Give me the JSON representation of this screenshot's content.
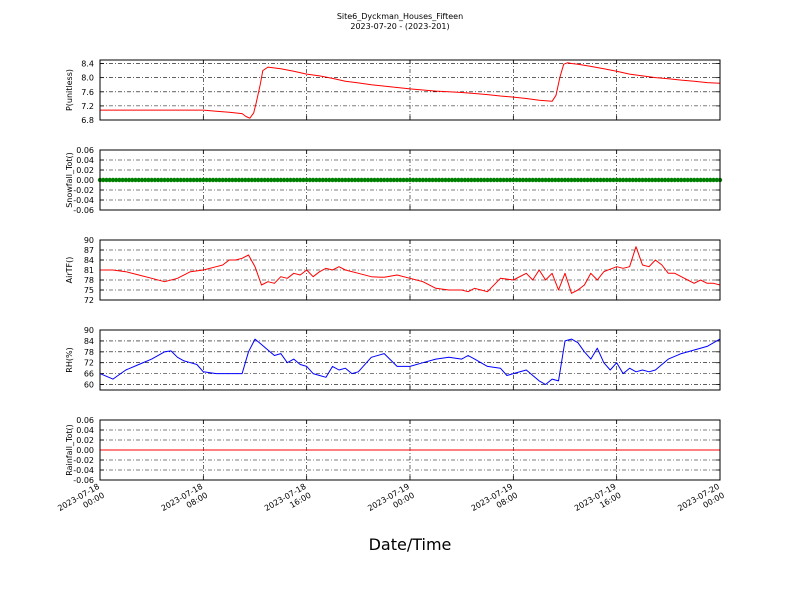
{
  "figure": {
    "title_line1": "Site6_Dyckman_Houses_Fifteen",
    "title_line2": "2023-07-20 - (2023-201)",
    "xlabel": "Date/Time"
  },
  "chart_data": [
    {
      "type": "line",
      "ylabel": "P(unitless)",
      "color": "#ff0000",
      "x_range_hours": [
        0,
        48
      ],
      "ylim": [
        6.8,
        8.5
      ],
      "yticks": [
        "8.4",
        "8.0",
        "7.6",
        "7.2",
        "6.8"
      ],
      "ytick_values": [
        8.4,
        8.0,
        7.6,
        7.2,
        6.8
      ],
      "grid": true,
      "x": [
        0,
        2,
        4,
        6,
        8,
        9,
        10,
        11,
        11.3,
        11.6,
        11.9,
        12.1,
        12.4,
        12.6,
        13,
        14,
        15,
        16,
        17,
        18,
        19,
        20,
        21,
        22,
        23,
        24,
        25,
        26,
        27,
        28,
        29,
        30,
        31,
        32,
        33,
        34,
        35,
        35.3,
        35.6,
        35.9,
        36.2,
        36.5,
        37,
        38,
        39,
        40,
        41,
        42,
        43,
        44,
        45,
        46,
        47,
        48
      ],
      "y": [
        7.08,
        7.08,
        7.08,
        7.08,
        7.08,
        7.05,
        7.02,
        6.98,
        6.9,
        6.85,
        7.0,
        7.3,
        7.8,
        8.2,
        8.3,
        8.25,
        8.18,
        8.1,
        8.05,
        7.98,
        7.9,
        7.85,
        7.8,
        7.76,
        7.72,
        7.68,
        7.65,
        7.62,
        7.6,
        7.58,
        7.55,
        7.52,
        7.48,
        7.45,
        7.41,
        7.36,
        7.33,
        7.5,
        8.0,
        8.38,
        8.42,
        8.4,
        8.38,
        8.32,
        8.25,
        8.18,
        8.1,
        8.05,
        8.0,
        7.97,
        7.93,
        7.9,
        7.86,
        7.84
      ]
    },
    {
      "type": "scatter",
      "ylabel": "Snowfall_Tot()",
      "color": "#008000",
      "x_range_hours": [
        0,
        48
      ],
      "ylim": [
        -0.06,
        0.06
      ],
      "yticks": [
        "0.06",
        "0.04",
        "0.02",
        "0.00",
        "-0.02",
        "-0.04",
        "-0.06"
      ],
      "ytick_values": [
        0.06,
        0.04,
        0.02,
        0.0,
        -0.02,
        -0.04,
        -0.06
      ],
      "grid": true,
      "constant_value": 0.0
    },
    {
      "type": "line",
      "ylabel": "AirTF()",
      "color": "#ff0000",
      "x_range_hours": [
        0,
        48
      ],
      "ylim": [
        72,
        90
      ],
      "yticks": [
        "90",
        "87",
        "84",
        "81",
        "78",
        "75",
        "72"
      ],
      "ytick_values": [
        90,
        87,
        84,
        81,
        78,
        75,
        72
      ],
      "grid": true,
      "x": [
        0,
        1,
        2,
        3,
        4,
        5,
        6,
        7,
        8,
        9,
        9.5,
        10,
        10.5,
        11,
        11.5,
        12,
        12.5,
        13,
        13.5,
        14,
        14.5,
        15,
        15.5,
        16,
        16.5,
        17,
        17.5,
        18,
        18.5,
        19,
        20,
        21,
        22,
        23,
        24,
        24.5,
        25,
        26,
        27,
        28,
        28.5,
        29,
        29.5,
        30,
        31,
        32,
        33,
        33.5,
        34,
        34.5,
        35,
        35.5,
        36,
        36.5,
        37,
        37.5,
        38,
        38.5,
        39,
        40,
        40.5,
        41,
        41.5,
        42,
        42.5,
        43,
        43.5,
        44,
        44.5,
        45,
        45.5,
        46,
        46.5,
        47,
        47.5,
        48
      ],
      "y": [
        81,
        81,
        80.5,
        79.5,
        78.5,
        77.5,
        78.5,
        80.5,
        81,
        82,
        82.5,
        84,
        84,
        84.5,
        85.5,
        82,
        76.5,
        77.5,
        77,
        79,
        78.5,
        80,
        79.5,
        81,
        79,
        80.5,
        81.5,
        81,
        82,
        81,
        80,
        79,
        78.8,
        79.5,
        78.5,
        78,
        77.5,
        75.5,
        75,
        75,
        74.5,
        75.5,
        75,
        74.5,
        78.5,
        78,
        80,
        78,
        81,
        78,
        80,
        75,
        80,
        74,
        75,
        76.5,
        80,
        78,
        80.5,
        82,
        81.5,
        82,
        88,
        82.5,
        82,
        84,
        82.5,
        80,
        80,
        79,
        78,
        77,
        78,
        77,
        77,
        76.5
      ]
    },
    {
      "type": "line",
      "ylabel": "RH(%)",
      "color": "#0000ff",
      "x_range_hours": [
        0,
        48
      ],
      "ylim": [
        57,
        90
      ],
      "yticks": [
        "90",
        "84",
        "78",
        "72",
        "66",
        "60"
      ],
      "ytick_values": [
        90,
        84,
        78,
        72,
        66,
        60
      ],
      "grid": true,
      "x": [
        0,
        1,
        2,
        3,
        4,
        5,
        5.5,
        6,
        6.5,
        7,
        7.5,
        8,
        9,
        10,
        11,
        11.5,
        12,
        12.5,
        13,
        13.5,
        14,
        14.5,
        15,
        15.5,
        16,
        16.5,
        17,
        17.5,
        18,
        18.5,
        19,
        19.5,
        20,
        21,
        22,
        23,
        24,
        25,
        26,
        27,
        28,
        28.5,
        29,
        30,
        31,
        31.5,
        32,
        33,
        34,
        34.5,
        35,
        35.5,
        36,
        36.5,
        37,
        37.5,
        38,
        38.5,
        39,
        39.5,
        40,
        40.5,
        41,
        41.5,
        42,
        42.5,
        43,
        43.5,
        44,
        45,
        46,
        47,
        48
      ],
      "y": [
        66,
        63,
        68,
        71,
        74,
        78,
        78.5,
        75,
        73,
        72,
        71,
        67,
        66,
        66,
        66,
        78,
        85,
        82,
        79,
        76,
        77,
        72,
        74,
        71,
        70,
        66,
        65,
        64,
        70,
        68,
        69,
        66,
        67,
        75,
        77,
        70,
        70,
        72,
        74,
        75,
        74,
        76,
        74,
        70,
        69,
        65,
        66,
        68,
        62,
        60,
        63,
        62,
        84,
        85,
        83,
        78,
        74,
        80,
        72,
        68,
        72,
        66,
        69,
        67,
        68,
        67,
        68,
        71,
        74,
        77,
        79,
        81,
        85
      ]
    },
    {
      "type": "line",
      "ylabel": "Rainfall_Tot()",
      "color": "#ff0000",
      "x_range_hours": [
        0,
        48
      ],
      "ylim": [
        -0.06,
        0.06
      ],
      "yticks": [
        "0.06",
        "0.04",
        "0.02",
        "0.00",
        "-0.02",
        "-0.04",
        "-0.06"
      ],
      "ytick_values": [
        0.06,
        0.04,
        0.02,
        0.0,
        -0.02,
        -0.04,
        -0.06
      ],
      "grid": true,
      "constant_value": 0.0
    }
  ],
  "xticks": [
    {
      "hour": 0,
      "line1": "2023-07-18",
      "line2": "00:00"
    },
    {
      "hour": 8,
      "line1": "2023-07-18",
      "line2": "08:00"
    },
    {
      "hour": 16,
      "line1": "2023-07-18",
      "line2": "16:00"
    },
    {
      "hour": 24,
      "line1": "2023-07-19",
      "line2": "00:00"
    },
    {
      "hour": 32,
      "line1": "2023-07-19",
      "line2": "08:00"
    },
    {
      "hour": 40,
      "line1": "2023-07-19",
      "line2": "16:00"
    },
    {
      "hour": 48,
      "line1": "2023-07-20",
      "line2": "00:00"
    }
  ]
}
